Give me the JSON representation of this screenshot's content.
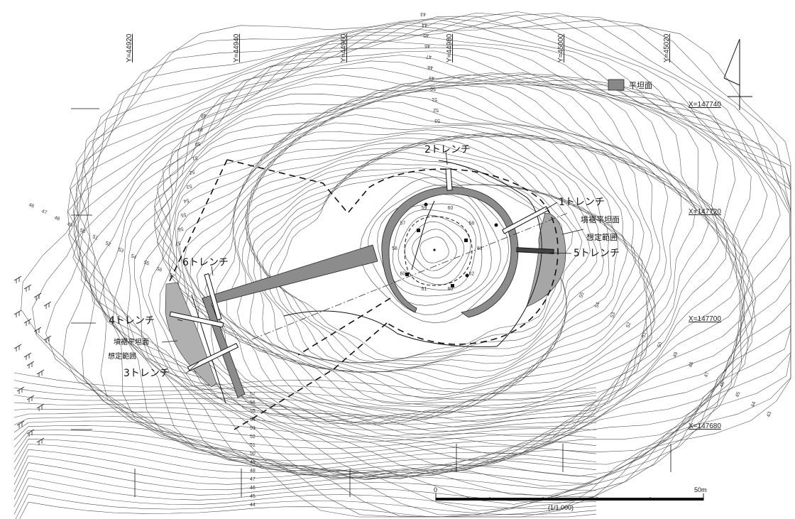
{
  "grid_y": [
    "Y=44920",
    "Y=44940",
    "Y=44960",
    "Y=44980",
    "Y=45000",
    "Y=45020"
  ],
  "grid_x": [
    "X=147740",
    "X=147720",
    "X=147700",
    "X=147680"
  ],
  "legend": {
    "label": "平坦面",
    "swatch_color": "#888888"
  },
  "trenches": {
    "t1": "1トレンチ",
    "t2": "2トレンチ",
    "t3": "3トレンチ",
    "t4": "4トレンチ",
    "t5": "5トレンチ",
    "t6": "6トレンチ"
  },
  "annotations": {
    "east_line1": "墳裾平坦面",
    "east_line2": "想定範囲",
    "west_line1": "墳裾平坦面",
    "west_line2": "想定範囲"
  },
  "contour_labels": {
    "top": [
      "43",
      "44",
      "45",
      "46",
      "47",
      "48",
      "49",
      "50",
      "51",
      "52",
      "53"
    ],
    "north_slope": [
      "48",
      "49",
      "50",
      "51",
      "52",
      "53",
      "54",
      "55",
      "56",
      "57"
    ],
    "left_slope": [
      "46",
      "47",
      "48",
      "49",
      "50",
      "51",
      "52",
      "53",
      "54",
      "55",
      "56",
      "57"
    ],
    "south_stack": [
      "57",
      "56",
      "55",
      "54",
      "53",
      "52",
      "51",
      "50",
      "49",
      "48",
      "47",
      "46",
      "45",
      "44"
    ],
    "east_slope": [
      "55",
      "54",
      "53",
      "52",
      "51",
      "50",
      "49",
      "48",
      "47",
      "46",
      "45",
      "44",
      "43"
    ],
    "mound": [
      "61",
      "62",
      "60",
      "61",
      "60",
      "58",
      "57",
      "59",
      "60",
      "58"
    ]
  },
  "scale": {
    "start": "0",
    "end": "50m",
    "ratio": "(1/1,000)"
  },
  "colors": {
    "flat_fill": "#8c8c8c",
    "trench_fill": "#ffffff",
    "line": "#222222"
  }
}
